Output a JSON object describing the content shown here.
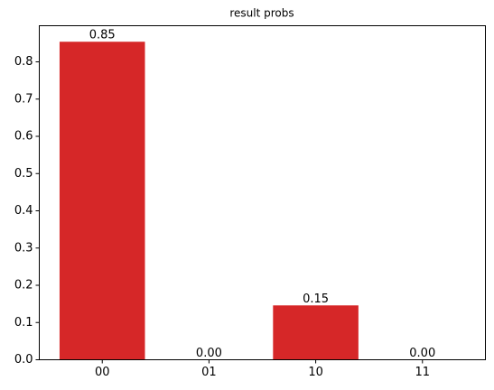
{
  "chart_data": {
    "type": "bar",
    "title": "result probs",
    "categories": [
      "00",
      "01",
      "10",
      "11"
    ],
    "values": [
      0.854,
      0,
      0.146,
      0
    ],
    "value_labels": [
      "0.85",
      "0.00",
      "0.15",
      "0.00"
    ],
    "color": "#d62728",
    "ylim": [
      0,
      0.897
    ],
    "yticks": [
      {
        "value": 0,
        "label": "0.0"
      },
      0.1,
      0.2,
      0.3,
      0.4,
      0.5,
      0.6,
      0.7,
      0.8
    ],
    "grid": false
  }
}
